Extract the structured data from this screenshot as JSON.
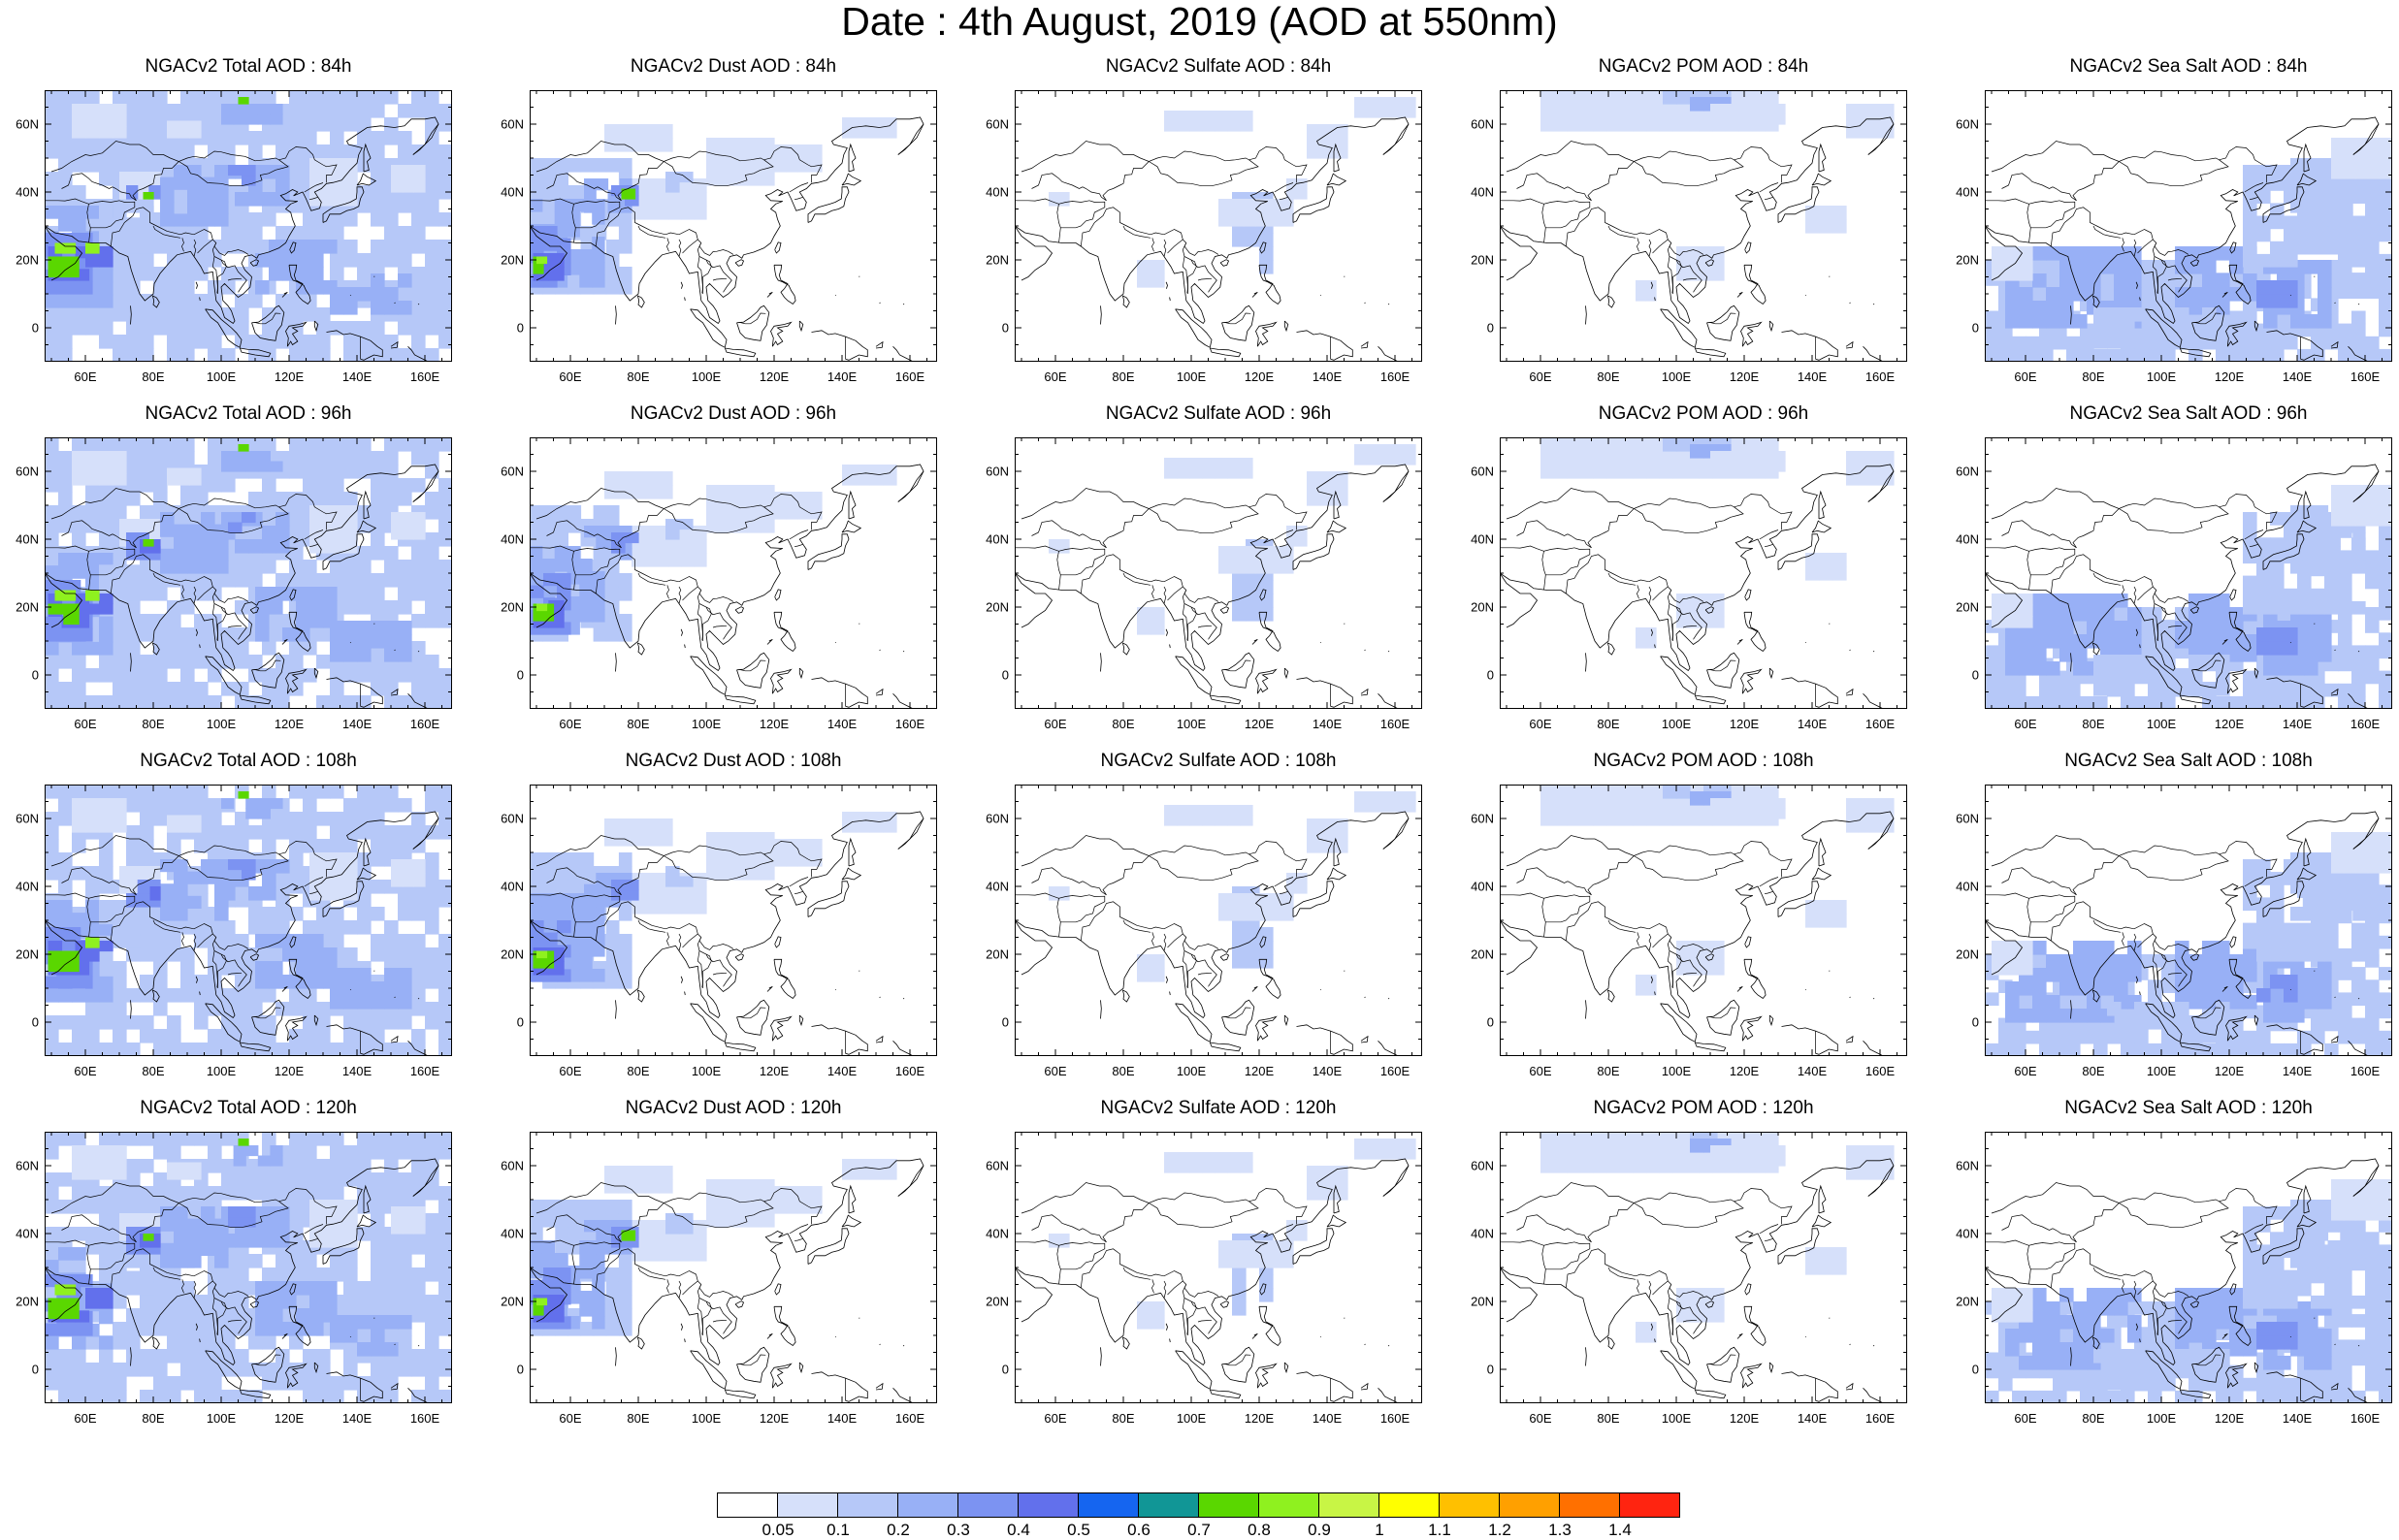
{
  "title": "Date : 4th August, 2019 (AOD at 550nm)",
  "lat_ticks": [
    "60N",
    "40N",
    "20N",
    "0"
  ],
  "lon_ticks": [
    "60E",
    "80E",
    "100E",
    "120E",
    "140E",
    "160E"
  ],
  "panels": [
    [
      {
        "title": "NGACv2 Total AOD : 84h",
        "species": "total",
        "lead_h": 84
      },
      {
        "title": "NGACv2 Dust AOD : 84h",
        "species": "dust",
        "lead_h": 84
      },
      {
        "title": "NGACv2 Sulfate AOD : 84h",
        "species": "sulfate",
        "lead_h": 84
      },
      {
        "title": "NGACv2 POM AOD : 84h",
        "species": "pom",
        "lead_h": 84
      },
      {
        "title": "NGACv2 Sea Salt AOD : 84h",
        "species": "seasalt",
        "lead_h": 84
      }
    ],
    [
      {
        "title": "NGACv2 Total AOD : 96h",
        "species": "total",
        "lead_h": 96
      },
      {
        "title": "NGACv2 Dust AOD : 96h",
        "species": "dust",
        "lead_h": 96
      },
      {
        "title": "NGACv2 Sulfate AOD : 96h",
        "species": "sulfate",
        "lead_h": 96
      },
      {
        "title": "NGACv2 POM AOD : 96h",
        "species": "pom",
        "lead_h": 96
      },
      {
        "title": "NGACv2 Sea Salt AOD : 96h",
        "species": "seasalt",
        "lead_h": 96
      }
    ],
    [
      {
        "title": "NGACv2 Total AOD : 108h",
        "species": "total",
        "lead_h": 108
      },
      {
        "title": "NGACv2 Dust AOD : 108h",
        "species": "dust",
        "lead_h": 108
      },
      {
        "title": "NGACv2 Sulfate AOD : 108h",
        "species": "sulfate",
        "lead_h": 108
      },
      {
        "title": "NGACv2 POM AOD : 108h",
        "species": "pom",
        "lead_h": 108
      },
      {
        "title": "NGACv2 Sea Salt AOD : 108h",
        "species": "seasalt",
        "lead_h": 108
      }
    ],
    [
      {
        "title": "NGACv2 Total AOD : 120h",
        "species": "total",
        "lead_h": 120
      },
      {
        "title": "NGACv2 Dust AOD : 120h",
        "species": "dust",
        "lead_h": 120
      },
      {
        "title": "NGACv2 Sulfate AOD : 120h",
        "species": "sulfate",
        "lead_h": 120
      },
      {
        "title": "NGACv2 POM AOD : 120h",
        "species": "pom",
        "lead_h": 120
      },
      {
        "title": "NGACv2 Sea Salt  AOD : 120h",
        "species": "seasalt",
        "lead_h": 120
      }
    ]
  ],
  "colorbar": {
    "labels": [
      "0.05",
      "0.1",
      "0.2",
      "0.3",
      "0.4",
      "0.5",
      "0.6",
      "0.7",
      "0.8",
      "0.9",
      "1",
      "1.1",
      "1.2",
      "1.3",
      "1.4"
    ],
    "colors": [
      "#ffffff",
      "#d6e0fa",
      "#b6c8f8",
      "#98b0f6",
      "#7c93f2",
      "#6270ec",
      "#1565f0",
      "#119696",
      "#5ad700",
      "#8ff11f",
      "#c8f545",
      "#ffff00",
      "#ffc000",
      "#ffa000",
      "#ff7000",
      "#ff2410"
    ]
  }
}
